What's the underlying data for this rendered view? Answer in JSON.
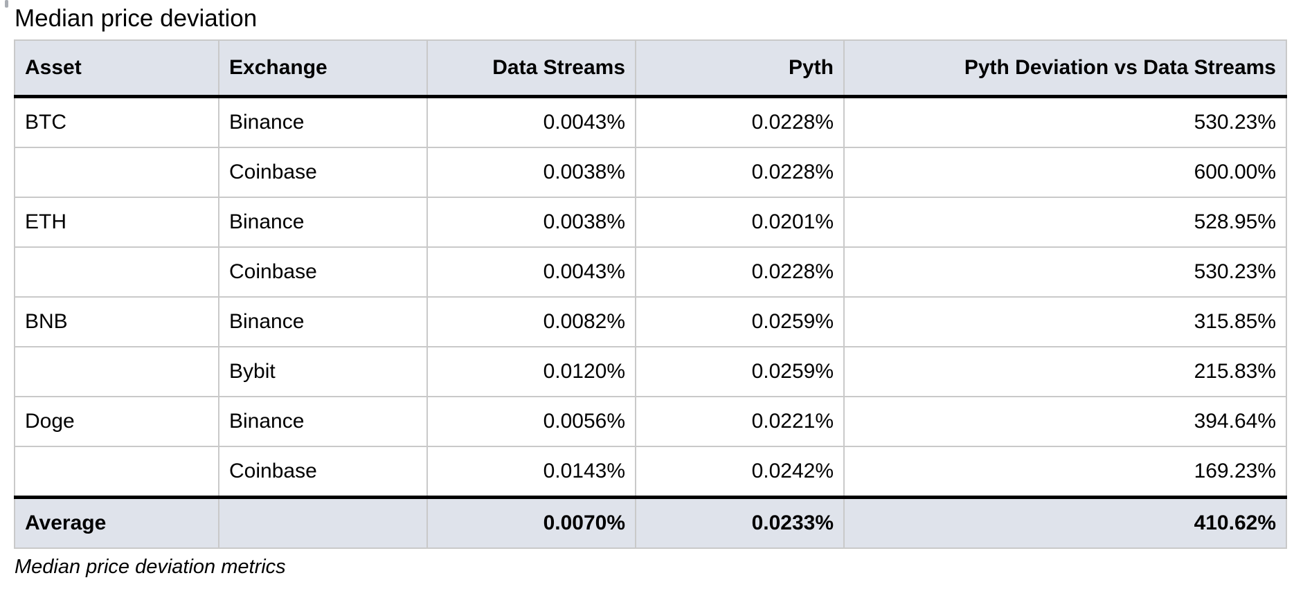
{
  "title": "Median price deviation",
  "caption": "Median price deviation metrics",
  "colors": {
    "header_bg": "#dfe3eb",
    "grid_line": "#c9c9c9",
    "strong_rule": "#000000",
    "text": "#000000",
    "page_bg": "#ffffff"
  },
  "chart_data": {
    "type": "table",
    "title": "Median price deviation",
    "caption": "Median price deviation metrics",
    "columns": [
      "Asset",
      "Exchange",
      "Data Streams",
      "Pyth",
      "Pyth Deviation vs Data Streams"
    ],
    "column_alignments": [
      "left",
      "left",
      "right",
      "right",
      "right"
    ],
    "rows": [
      [
        "BTC",
        "Binance",
        "0.0043%",
        "0.0228%",
        "530.23%"
      ],
      [
        "",
        "Coinbase",
        "0.0038%",
        "0.0228%",
        "600.00%"
      ],
      [
        "ETH",
        "Binance",
        "0.0038%",
        "0.0201%",
        "528.95%"
      ],
      [
        "",
        "Coinbase",
        "0.0043%",
        "0.0228%",
        "530.23%"
      ],
      [
        "BNB",
        "Binance",
        "0.0082%",
        "0.0259%",
        "315.85%"
      ],
      [
        "",
        "Bybit",
        "0.0120%",
        "0.0259%",
        "215.83%"
      ],
      [
        "Doge",
        "Binance",
        "0.0056%",
        "0.0221%",
        "394.64%"
      ],
      [
        "",
        "Coinbase",
        "0.0143%",
        "0.0242%",
        "169.23%"
      ]
    ],
    "footer": [
      "Average",
      "",
      "0.0070%",
      "0.0233%",
      "410.62%"
    ]
  }
}
